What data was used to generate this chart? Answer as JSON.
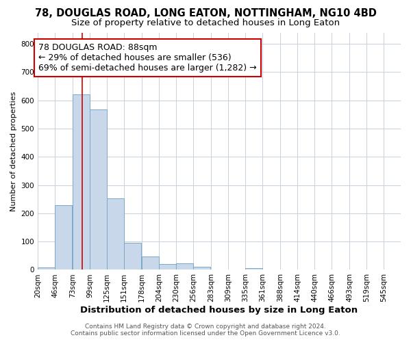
{
  "title": "78, DOUGLAS ROAD, LONG EATON, NOTTINGHAM, NG10 4BD",
  "subtitle": "Size of property relative to detached houses in Long Eaton",
  "xlabel": "Distribution of detached houses by size in Long Eaton",
  "ylabel": "Number of detached properties",
  "footer_line1": "Contains HM Land Registry data © Crown copyright and database right 2024.",
  "footer_line2": "Contains public sector information licensed under the Open Government Licence v3.0.",
  "bar_color": "#c8d8ea",
  "bar_edge_color": "#7ba8c8",
  "annotation_box_color": "#cc0000",
  "vline_color": "#cc0000",
  "grid_color": "#c8d0dc",
  "bin_labels": [
    "20sqm",
    "46sqm",
    "73sqm",
    "99sqm",
    "125sqm",
    "151sqm",
    "178sqm",
    "204sqm",
    "230sqm",
    "256sqm",
    "283sqm",
    "309sqm",
    "335sqm",
    "361sqm",
    "388sqm",
    "414sqm",
    "440sqm",
    "466sqm",
    "493sqm",
    "519sqm",
    "545sqm"
  ],
  "bar_heights": [
    8,
    228,
    620,
    567,
    252,
    95,
    47,
    20,
    22,
    10,
    0,
    0,
    5,
    0,
    0,
    0,
    0,
    0,
    0,
    0,
    0
  ],
  "property_label": "78 DOUGLAS ROAD: 88sqm",
  "pct_smaller_detached": 29,
  "count_smaller_detached": 536,
  "pct_larger_semidetached": 69,
  "count_larger_semidetached": "1,282",
  "vline_x": 88,
  "bin_edges": [
    20,
    46,
    73,
    99,
    125,
    151,
    178,
    204,
    230,
    256,
    283,
    309,
    335,
    361,
    388,
    414,
    440,
    466,
    493,
    519,
    545
  ],
  "bin_width": 26,
  "ylim": [
    0,
    840
  ],
  "yticks": [
    0,
    100,
    200,
    300,
    400,
    500,
    600,
    700,
    800
  ],
  "background_color": "#ffffff",
  "title_fontsize": 10.5,
  "subtitle_fontsize": 9.5,
  "annotation_fontsize": 9,
  "ylabel_fontsize": 8,
  "xlabel_fontsize": 9.5,
  "tick_fontsize": 7.5,
  "footer_fontsize": 6.5
}
